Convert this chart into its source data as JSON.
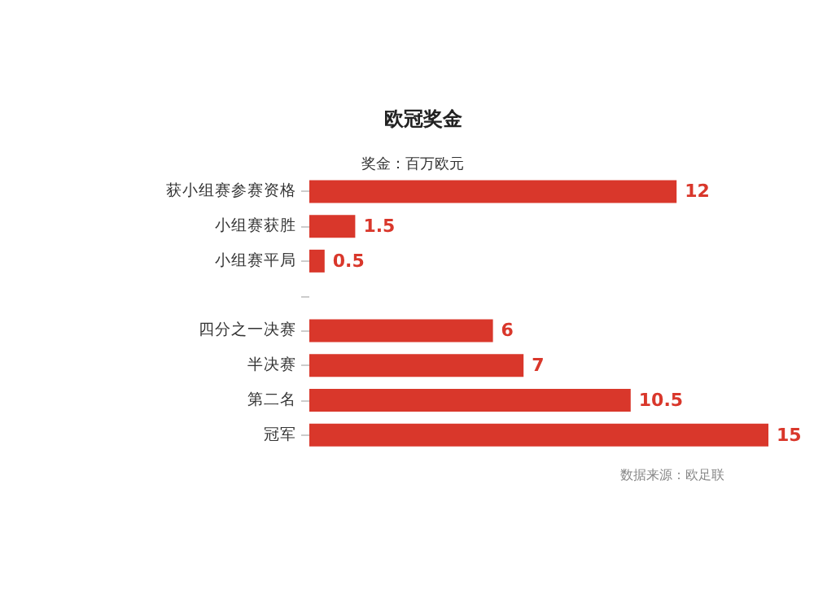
{
  "chart_data": {
    "type": "bar",
    "orientation": "horizontal",
    "title": "欧冠奖金",
    "subtitle": "奖金：百万欧元",
    "categories": [
      "获小组赛参赛资格",
      "小组赛获胜",
      "小组赛平局",
      null,
      "四分之一决赛",
      "半决赛",
      "第二名",
      "冠军"
    ],
    "values": [
      12,
      1.5,
      0.5,
      null,
      6,
      7,
      10.5,
      15
    ],
    "color": "#d9372b",
    "data_labels": true,
    "annotations": [
      "数据来源：欧足联"
    ]
  }
}
